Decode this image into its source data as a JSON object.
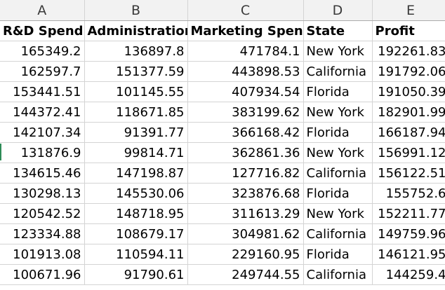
{
  "columns": [
    "A",
    "B",
    "C",
    "D",
    "E"
  ],
  "header_row": [
    "R&D Spend",
    "Administration",
    "Marketing Spend",
    "State",
    "Profit"
  ],
  "rows": [
    [
      "165349.2",
      "136897.8",
      "471784.1",
      "New York",
      "192261.83"
    ],
    [
      "162597.7",
      "151377.59",
      "443898.53",
      "California",
      "191792.06"
    ],
    [
      "153441.51",
      "101145.55",
      "407934.54",
      "Florida",
      "191050.39"
    ],
    [
      "144372.41",
      "118671.85",
      "383199.62",
      "New York",
      "182901.99"
    ],
    [
      "142107.34",
      "91391.77",
      "366168.42",
      "Florida",
      "166187.94"
    ],
    [
      "131876.9",
      "99814.71",
      "362861.36",
      "New York",
      "156991.12"
    ],
    [
      "134615.46",
      "147198.87",
      "127716.82",
      "California",
      "156122.51"
    ],
    [
      "130298.13",
      "145530.06",
      "323876.68",
      "Florida",
      "155752.6"
    ],
    [
      "120542.52",
      "148718.95",
      "311613.29",
      "New York",
      "152211.77"
    ],
    [
      "123334.88",
      "108679.17",
      "304981.62",
      "California",
      "149759.96"
    ],
    [
      "101913.08",
      "110594.11",
      "229160.95",
      "Florida",
      "146121.95"
    ],
    [
      "100671.96",
      "91790.61",
      "249744.55",
      "California",
      "144259.4"
    ]
  ],
  "colors": {
    "header_background": "#f2f2f2",
    "gridline": "#d4d4d4",
    "row_marker": "#2e8b57"
  }
}
